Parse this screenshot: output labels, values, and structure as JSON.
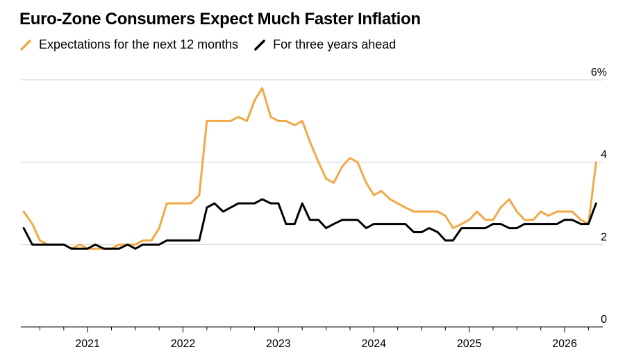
{
  "chart_data": {
    "type": "line",
    "title": "Euro-Zone Consumers Expect Much Faster Inflation",
    "y_unit_label": "6%",
    "ylim": [
      0,
      6
    ],
    "y_ticks": [
      {
        "value": 0,
        "label": "0"
      },
      {
        "value": 2,
        "label": "2"
      },
      {
        "value": 4,
        "label": "4"
      },
      {
        "value": 6,
        "label": "6%"
      }
    ],
    "x_ticks": [
      {
        "value": 2021.0,
        "label": "2021"
      },
      {
        "value": 2022.0,
        "label": "2022"
      },
      {
        "value": 2023.0,
        "label": "2023"
      },
      {
        "value": 2024.0,
        "label": "2024"
      },
      {
        "value": 2025.0,
        "label": "2025"
      },
      {
        "value": 2026.0,
        "label": "2026"
      }
    ],
    "xlim": [
      2020.3,
      2026.4
    ],
    "grid": true,
    "legend_position": "top-left",
    "series": [
      {
        "name": "Expectations for the next 12 months",
        "color": "#f0a945",
        "points": [
          [
            2020.33,
            2.8
          ],
          [
            2020.42,
            2.5
          ],
          [
            2020.5,
            2.1
          ],
          [
            2020.58,
            2.0
          ],
          [
            2020.67,
            2.0
          ],
          [
            2020.75,
            2.0
          ],
          [
            2020.83,
            1.9
          ],
          [
            2020.92,
            2.0
          ],
          [
            2021.0,
            1.9
          ],
          [
            2021.08,
            1.9
          ],
          [
            2021.17,
            1.9
          ],
          [
            2021.25,
            1.9
          ],
          [
            2021.33,
            2.0
          ],
          [
            2021.42,
            2.0
          ],
          [
            2021.5,
            2.0
          ],
          [
            2021.58,
            2.1
          ],
          [
            2021.67,
            2.1
          ],
          [
            2021.75,
            2.4
          ],
          [
            2021.83,
            3.0
          ],
          [
            2021.92,
            3.0
          ],
          [
            2022.0,
            3.0
          ],
          [
            2022.08,
            3.0
          ],
          [
            2022.17,
            3.2
          ],
          [
            2022.25,
            5.0
          ],
          [
            2022.33,
            5.0
          ],
          [
            2022.42,
            5.0
          ],
          [
            2022.5,
            5.0
          ],
          [
            2022.58,
            5.1
          ],
          [
            2022.67,
            5.0
          ],
          [
            2022.75,
            5.5
          ],
          [
            2022.83,
            5.8
          ],
          [
            2022.92,
            5.1
          ],
          [
            2023.0,
            5.0
          ],
          [
            2023.08,
            5.0
          ],
          [
            2023.17,
            4.9
          ],
          [
            2023.25,
            5.0
          ],
          [
            2023.33,
            4.5
          ],
          [
            2023.42,
            4.0
          ],
          [
            2023.5,
            3.6
          ],
          [
            2023.58,
            3.5
          ],
          [
            2023.67,
            3.9
          ],
          [
            2023.75,
            4.1
          ],
          [
            2023.83,
            4.0
          ],
          [
            2023.92,
            3.5
          ],
          [
            2024.0,
            3.2
          ],
          [
            2024.08,
            3.3
          ],
          [
            2024.17,
            3.1
          ],
          [
            2024.25,
            3.0
          ],
          [
            2024.33,
            2.9
          ],
          [
            2024.42,
            2.8
          ],
          [
            2024.5,
            2.8
          ],
          [
            2024.58,
            2.8
          ],
          [
            2024.67,
            2.8
          ],
          [
            2024.75,
            2.7
          ],
          [
            2024.83,
            2.4
          ],
          [
            2024.92,
            2.5
          ],
          [
            2025.0,
            2.6
          ],
          [
            2025.08,
            2.8
          ],
          [
            2025.17,
            2.6
          ],
          [
            2025.25,
            2.6
          ],
          [
            2025.33,
            2.9
          ],
          [
            2025.42,
            3.1
          ],
          [
            2025.5,
            2.8
          ],
          [
            2025.58,
            2.6
          ],
          [
            2025.67,
            2.6
          ],
          [
            2025.75,
            2.8
          ],
          [
            2025.83,
            2.7
          ],
          [
            2025.92,
            2.8
          ],
          [
            2026.0,
            2.8
          ],
          [
            2026.08,
            2.8
          ],
          [
            2026.17,
            2.6
          ],
          [
            2026.25,
            2.5
          ],
          [
            2026.33,
            4.0
          ]
        ]
      },
      {
        "name": "For three years ahead",
        "color": "#000000",
        "points": [
          [
            2020.33,
            2.4
          ],
          [
            2020.42,
            2.0
          ],
          [
            2020.5,
            2.0
          ],
          [
            2020.58,
            2.0
          ],
          [
            2020.67,
            2.0
          ],
          [
            2020.75,
            2.0
          ],
          [
            2020.83,
            1.9
          ],
          [
            2020.92,
            1.9
          ],
          [
            2021.0,
            1.9
          ],
          [
            2021.08,
            2.0
          ],
          [
            2021.17,
            1.9
          ],
          [
            2021.25,
            1.9
          ],
          [
            2021.33,
            1.9
          ],
          [
            2021.42,
            2.0
          ],
          [
            2021.5,
            1.9
          ],
          [
            2021.58,
            2.0
          ],
          [
            2021.67,
            2.0
          ],
          [
            2021.75,
            2.0
          ],
          [
            2021.83,
            2.1
          ],
          [
            2021.92,
            2.1
          ],
          [
            2022.0,
            2.1
          ],
          [
            2022.08,
            2.1
          ],
          [
            2022.17,
            2.1
          ],
          [
            2022.25,
            2.9
          ],
          [
            2022.33,
            3.0
          ],
          [
            2022.42,
            2.8
          ],
          [
            2022.5,
            2.9
          ],
          [
            2022.58,
            3.0
          ],
          [
            2022.67,
            3.0
          ],
          [
            2022.75,
            3.0
          ],
          [
            2022.83,
            3.1
          ],
          [
            2022.92,
            3.0
          ],
          [
            2023.0,
            3.0
          ],
          [
            2023.08,
            2.5
          ],
          [
            2023.17,
            2.5
          ],
          [
            2023.25,
            3.0
          ],
          [
            2023.33,
            2.6
          ],
          [
            2023.42,
            2.6
          ],
          [
            2023.5,
            2.4
          ],
          [
            2023.58,
            2.5
          ],
          [
            2023.67,
            2.6
          ],
          [
            2023.75,
            2.6
          ],
          [
            2023.83,
            2.6
          ],
          [
            2023.92,
            2.4
          ],
          [
            2024.0,
            2.5
          ],
          [
            2024.08,
            2.5
          ],
          [
            2024.17,
            2.5
          ],
          [
            2024.25,
            2.5
          ],
          [
            2024.33,
            2.5
          ],
          [
            2024.42,
            2.3
          ],
          [
            2024.5,
            2.3
          ],
          [
            2024.58,
            2.4
          ],
          [
            2024.67,
            2.3
          ],
          [
            2024.75,
            2.1
          ],
          [
            2024.83,
            2.1
          ],
          [
            2024.92,
            2.4
          ],
          [
            2025.0,
            2.4
          ],
          [
            2025.08,
            2.4
          ],
          [
            2025.17,
            2.4
          ],
          [
            2025.25,
            2.5
          ],
          [
            2025.33,
            2.5
          ],
          [
            2025.42,
            2.4
          ],
          [
            2025.5,
            2.4
          ],
          [
            2025.58,
            2.5
          ],
          [
            2025.67,
            2.5
          ],
          [
            2025.75,
            2.5
          ],
          [
            2025.83,
            2.5
          ],
          [
            2025.92,
            2.5
          ],
          [
            2026.0,
            2.6
          ],
          [
            2026.08,
            2.6
          ],
          [
            2026.17,
            2.5
          ],
          [
            2026.25,
            2.5
          ],
          [
            2026.33,
            3.0
          ]
        ]
      }
    ]
  }
}
